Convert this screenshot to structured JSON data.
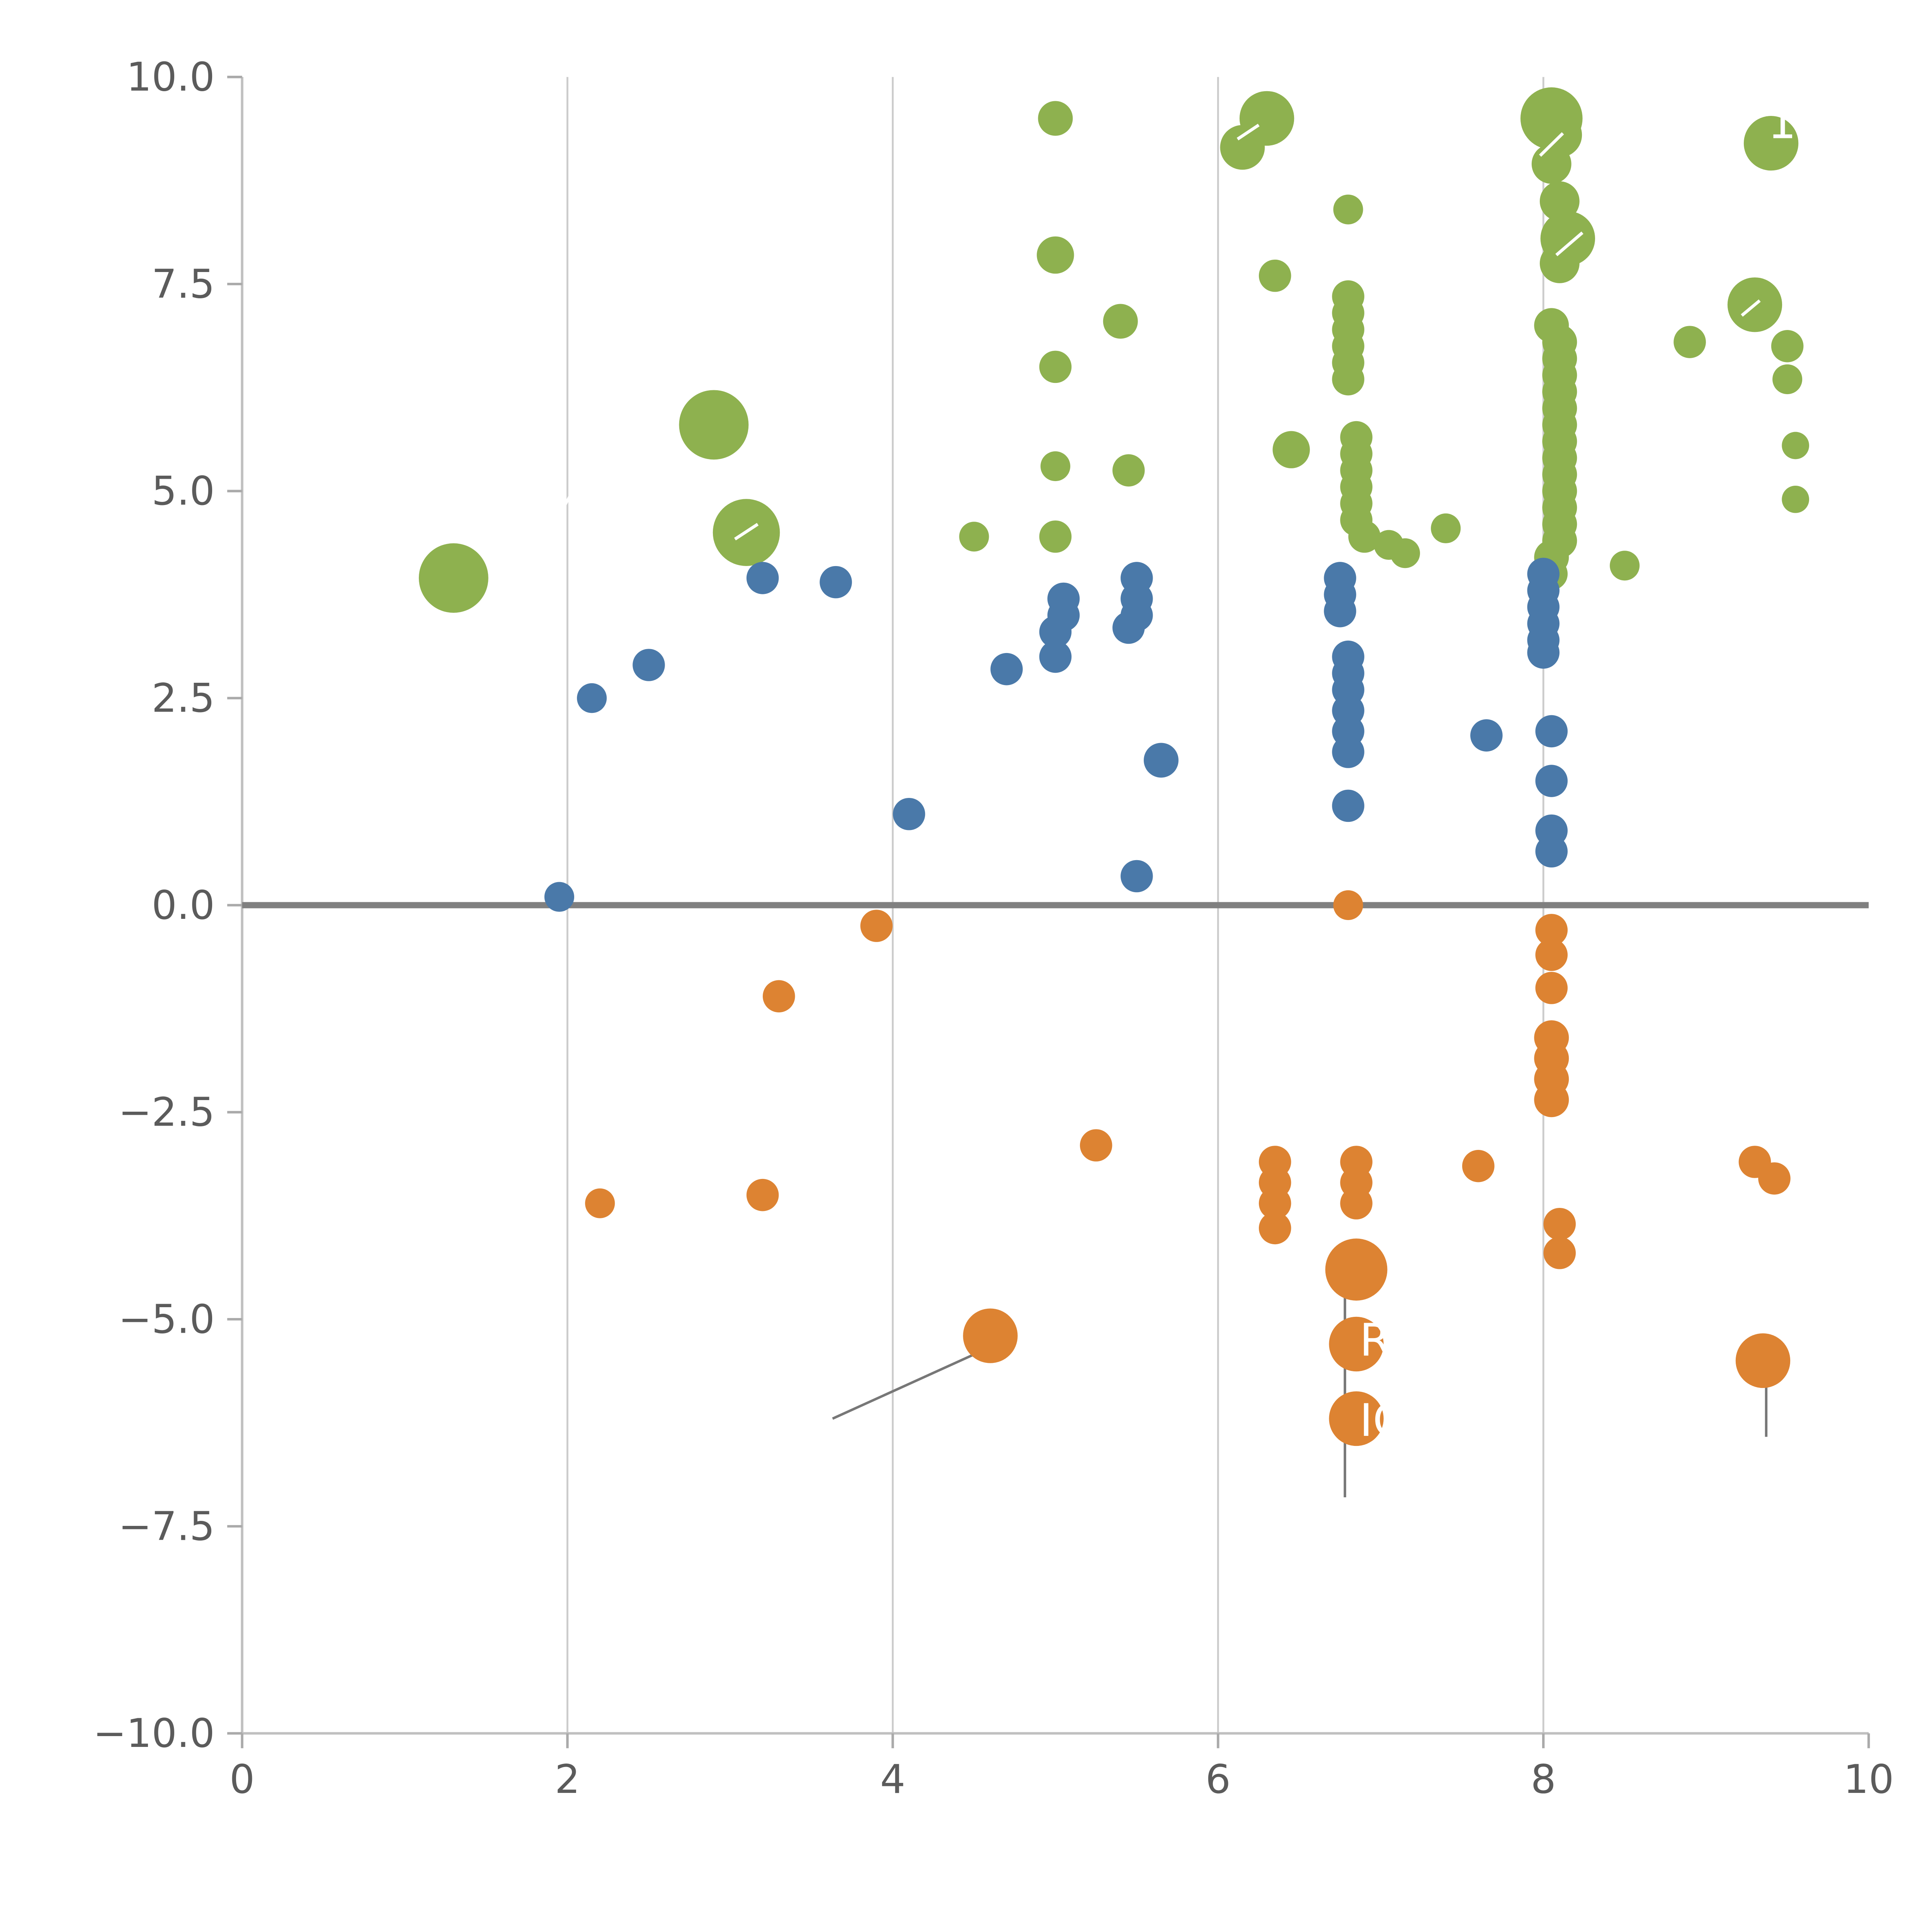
{
  "chart_data": {
    "type": "scatter",
    "title": "",
    "xlabel": "",
    "ylabel": "",
    "xlim": [
      0,
      10
    ],
    "ylim": [
      -10,
      10
    ],
    "x_ticks": [
      0,
      2,
      4,
      6,
      8,
      10
    ],
    "x_tick_labels": [
      "0",
      "2",
      "4",
      "6",
      "8",
      "10"
    ],
    "y_ticks": [
      -10,
      -7.5,
      -5,
      -2.5,
      0,
      2.5,
      5,
      7.5,
      10
    ],
    "y_tick_labels": [
      "−10.0",
      "−7.5",
      "−5.0",
      "−2.5",
      "0.0",
      "2.5",
      "5.0",
      "7.5",
      "10.0"
    ],
    "grid": {
      "vertical_lines_at": [
        2,
        4,
        6,
        8
      ],
      "horizontal_zero_line": true
    },
    "legend": "none",
    "points_format": [
      "x",
      "y",
      "radius_px"
    ],
    "series": [
      {
        "name": "green",
        "color": "#8eb14f",
        "points": [
          [
            1.3,
            3.95,
            28
          ],
          [
            2.9,
            5.8,
            28
          ],
          [
            3.1,
            4.5,
            27
          ],
          [
            4.5,
            4.45,
            12
          ],
          [
            5.0,
            9.5,
            14
          ],
          [
            5.0,
            7.85,
            15
          ],
          [
            5.4,
            7.05,
            14
          ],
          [
            5.0,
            6.5,
            13
          ],
          [
            5.0,
            5.3,
            12
          ],
          [
            5.45,
            5.25,
            13
          ],
          [
            5.0,
            4.45,
            13
          ],
          [
            6.15,
            9.15,
            18
          ],
          [
            6.3,
            9.5,
            22
          ],
          [
            6.35,
            7.6,
            13
          ],
          [
            6.45,
            5.5,
            15
          ],
          [
            6.8,
            8.4,
            12
          ],
          [
            6.8,
            7.35,
            13
          ],
          [
            6.8,
            7.15,
            13
          ],
          [
            6.8,
            6.95,
            13
          ],
          [
            6.8,
            6.75,
            13
          ],
          [
            6.8,
            6.55,
            13
          ],
          [
            6.8,
            6.35,
            13
          ],
          [
            6.85,
            5.65,
            13
          ],
          [
            6.85,
            5.45,
            13
          ],
          [
            6.85,
            5.25,
            13
          ],
          [
            6.85,
            5.05,
            13
          ],
          [
            6.85,
            4.85,
            13
          ],
          [
            6.85,
            4.65,
            13
          ],
          [
            6.9,
            4.45,
            13
          ],
          [
            7.05,
            4.35,
            12
          ],
          [
            7.15,
            4.25,
            12
          ],
          [
            7.4,
            4.55,
            12
          ],
          [
            8.05,
            9.5,
            25
          ],
          [
            8.1,
            9.3,
            18
          ],
          [
            8.05,
            8.95,
            16
          ],
          [
            8.1,
            8.5,
            16
          ],
          [
            8.15,
            8.05,
            22
          ],
          [
            8.1,
            7.75,
            16
          ],
          [
            8.05,
            7.0,
            14
          ],
          [
            8.1,
            6.8,
            14
          ],
          [
            8.1,
            6.6,
            14
          ],
          [
            8.1,
            6.4,
            14
          ],
          [
            8.1,
            6.2,
            14
          ],
          [
            8.1,
            6.0,
            14
          ],
          [
            8.1,
            5.8,
            14
          ],
          [
            8.1,
            5.6,
            14
          ],
          [
            8.1,
            5.4,
            14
          ],
          [
            8.1,
            5.2,
            14
          ],
          [
            8.1,
            5.0,
            14
          ],
          [
            8.1,
            4.8,
            14
          ],
          [
            8.1,
            4.6,
            14
          ],
          [
            8.1,
            4.4,
            14
          ],
          [
            8.05,
            4.2,
            14
          ],
          [
            8.05,
            4.0,
            13
          ],
          [
            8.5,
            4.1,
            12
          ],
          [
            8.9,
            6.8,
            13
          ],
          [
            9.3,
            7.25,
            22
          ],
          [
            9.4,
            9.2,
            22
          ],
          [
            9.5,
            6.75,
            13
          ],
          [
            9.5,
            6.35,
            12
          ],
          [
            9.55,
            5.55,
            11
          ],
          [
            9.55,
            4.9,
            11
          ]
        ]
      },
      {
        "name": "blue",
        "color": "#4a79a9",
        "points": [
          [
            1.95,
            0.1,
            12
          ],
          [
            2.15,
            2.5,
            12
          ],
          [
            2.5,
            2.9,
            13
          ],
          [
            3.2,
            3.95,
            13
          ],
          [
            3.65,
            3.9,
            13
          ],
          [
            4.1,
            1.1,
            13
          ],
          [
            4.7,
            2.85,
            13
          ],
          [
            5.05,
            3.7,
            13
          ],
          [
            5.05,
            3.5,
            13
          ],
          [
            5.0,
            3.3,
            13
          ],
          [
            5.0,
            3.0,
            13
          ],
          [
            5.5,
            3.95,
            13
          ],
          [
            5.5,
            3.7,
            13
          ],
          [
            5.5,
            3.5,
            13
          ],
          [
            5.45,
            3.35,
            13
          ],
          [
            5.65,
            1.75,
            14
          ],
          [
            5.5,
            0.35,
            13
          ],
          [
            6.75,
            3.95,
            13
          ],
          [
            6.75,
            3.75,
            13
          ],
          [
            6.75,
            3.55,
            13
          ],
          [
            6.8,
            3.0,
            13
          ],
          [
            6.8,
            2.8,
            13
          ],
          [
            6.8,
            2.6,
            13
          ],
          [
            6.8,
            2.35,
            13
          ],
          [
            6.8,
            2.1,
            13
          ],
          [
            6.8,
            1.85,
            13
          ],
          [
            6.8,
            1.2,
            13
          ],
          [
            7.65,
            2.05,
            13
          ],
          [
            8.0,
            4.0,
            13
          ],
          [
            8.0,
            3.8,
            13
          ],
          [
            8.0,
            3.6,
            13
          ],
          [
            8.0,
            3.4,
            13
          ],
          [
            8.0,
            3.2,
            13
          ],
          [
            8.0,
            3.05,
            13
          ],
          [
            8.05,
            2.1,
            13
          ],
          [
            8.05,
            1.5,
            13
          ],
          [
            8.05,
            0.9,
            13
          ],
          [
            8.05,
            0.65,
            13
          ]
        ]
      },
      {
        "name": "orange",
        "color": "#dd8332",
        "points": [
          [
            2.2,
            -3.6,
            12
          ],
          [
            3.3,
            -1.1,
            13
          ],
          [
            3.2,
            -3.5,
            13
          ],
          [
            3.9,
            -0.25,
            13
          ],
          [
            4.6,
            -5.2,
            22
          ],
          [
            5.25,
            -2.9,
            13
          ],
          [
            6.35,
            -3.1,
            13
          ],
          [
            6.35,
            -3.35,
            13
          ],
          [
            6.35,
            -3.6,
            13
          ],
          [
            6.35,
            -3.9,
            13
          ],
          [
            6.8,
            0.0,
            12
          ],
          [
            6.85,
            -3.1,
            13
          ],
          [
            6.85,
            -3.35,
            13
          ],
          [
            6.85,
            -3.6,
            13
          ],
          [
            6.85,
            -4.4,
            25
          ],
          [
            6.85,
            -5.3,
            22
          ],
          [
            6.85,
            -6.2,
            22
          ],
          [
            7.6,
            -3.15,
            13
          ],
          [
            8.05,
            -0.3,
            13
          ],
          [
            8.05,
            -0.6,
            13
          ],
          [
            8.05,
            -1.0,
            13
          ],
          [
            8.05,
            -1.6,
            14
          ],
          [
            8.05,
            -1.85,
            14
          ],
          [
            8.05,
            -2.1,
            14
          ],
          [
            8.05,
            -2.35,
            14
          ],
          [
            8.1,
            -3.85,
            13
          ],
          [
            8.1,
            -4.2,
            13
          ],
          [
            9.3,
            -3.1,
            13
          ],
          [
            9.42,
            -3.3,
            13
          ],
          [
            9.35,
            -5.5,
            22
          ]
        ]
      }
    ],
    "annotations": {
      "texts": [
        {
          "text": "R",
          "x": 6.87,
          "y": -5.25,
          "color": "#ffffff",
          "size": 36
        },
        {
          "text": "IC",
          "x": 6.87,
          "y": -6.22,
          "color": "#ffffff",
          "size": 36
        },
        {
          "text": "1",
          "x": 9.38,
          "y": 9.45,
          "color": "#ffffff",
          "size": 36
        }
      ],
      "lines": [
        {
          "x1": 3.63,
          "y1": -6.2,
          "x2": 4.55,
          "y2": -5.38,
          "color": "#777777",
          "width": 2
        },
        {
          "x1": 6.78,
          "y1": -7.15,
          "x2": 6.78,
          "y2": -4.65,
          "color": "#777777",
          "width": 2
        },
        {
          "x1": 9.37,
          "y1": -6.42,
          "x2": 9.37,
          "y2": -5.6,
          "color": "#777777",
          "width": 2
        },
        {
          "x1": 6.12,
          "y1": 9.25,
          "x2": 6.25,
          "y2": 9.42,
          "color": "#ffffff",
          "width": 2.5
        },
        {
          "x1": 7.98,
          "y1": 9.05,
          "x2": 8.12,
          "y2": 9.32,
          "color": "#ffffff",
          "width": 2.5
        },
        {
          "x1": 8.08,
          "y1": 7.85,
          "x2": 8.24,
          "y2": 8.12,
          "color": "#ffffff",
          "width": 2.5
        },
        {
          "x1": 9.22,
          "y1": 7.12,
          "x2": 9.33,
          "y2": 7.3,
          "color": "#ffffff",
          "width": 2.5
        },
        {
          "x1": 1.98,
          "y1": 4.82,
          "x2": 2.02,
          "y2": 4.95,
          "color": "#ffffff",
          "width": 2.5
        },
        {
          "x1": 3.03,
          "y1": 4.42,
          "x2": 3.17,
          "y2": 4.6,
          "color": "#ffffff",
          "width": 2.5
        }
      ]
    },
    "style": {
      "background": "#ffffff",
      "grid_color": "#cccccc",
      "spine_color": "#c0c0c0",
      "tick_color": "#aaaaaa",
      "tick_label_color": "#5b5b5b",
      "zero_line_color": "#808080"
    }
  }
}
